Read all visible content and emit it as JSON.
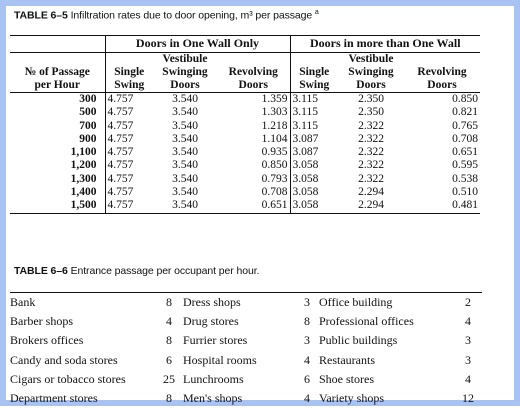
{
  "table65": {
    "number": "TABLE 6–5",
    "title": "Infiltration rates due to door opening, m³ per passage",
    "footnote_mark": "a",
    "group_one_wall": "Doors in One Wall Only",
    "group_more_wall": "Doors in more than One Wall",
    "row_header_line1": "№ of Passage",
    "row_header_line2": "per Hour",
    "columns": [
      {
        "l1": "",
        "l2": "Single",
        "l3": "Swing"
      },
      {
        "l1": "Vestibule",
        "l2": "Swinging",
        "l3": "Doors"
      },
      {
        "l1": "",
        "l2": "Revolving",
        "l3": "Doors"
      },
      {
        "l1": "",
        "l2": "Single",
        "l3": "Swing"
      },
      {
        "l1": "Vestibule",
        "l2": "Swinging",
        "l3": "Doors"
      },
      {
        "l1": "",
        "l2": "Revolving",
        "l3": "Doors"
      }
    ],
    "rows": [
      {
        "passages": "300",
        "v": [
          "4.757",
          "3.540",
          "1.359",
          "3.115",
          "2.350",
          "0.850"
        ]
      },
      {
        "passages": "500",
        "v": [
          "4.757",
          "3.540",
          "1.303",
          "3.115",
          "2.350",
          "0.821"
        ]
      },
      {
        "passages": "700",
        "v": [
          "4.757",
          "3.540",
          "1.218",
          "3.115",
          "2.322",
          "0.765"
        ]
      },
      {
        "passages": "900",
        "v": [
          "4.757",
          "3.540",
          "1.104",
          "3.087",
          "2.322",
          "0.708"
        ]
      },
      {
        "passages": "1,100",
        "v": [
          "4.757",
          "3.540",
          "0.935",
          "3.087",
          "2.322",
          "0.651"
        ]
      },
      {
        "passages": "1,200",
        "v": [
          "4.757",
          "3.540",
          "0.850",
          "3.058",
          "2.322",
          "0.595"
        ]
      },
      {
        "passages": "1,300",
        "v": [
          "4.757",
          "3.540",
          "0.793",
          "3.058",
          "2.322",
          "0.538"
        ]
      },
      {
        "passages": "1,400",
        "v": [
          "4.757",
          "3.540",
          "0.708",
          "3.058",
          "2.294",
          "0.510"
        ]
      },
      {
        "passages": "1,500",
        "v": [
          "4.757",
          "3.540",
          "0.651",
          "3.058",
          "2.294",
          "0.481"
        ]
      }
    ]
  },
  "table66": {
    "number": "TABLE 6–6",
    "title": "Entrance passage per occupant per hour.",
    "rows": [
      [
        {
          "name": "Bank",
          "value": "8"
        },
        {
          "name": "Dress shops",
          "value": "3"
        },
        {
          "name": "Office building",
          "value": "2"
        }
      ],
      [
        {
          "name": "Barber shops",
          "value": "4"
        },
        {
          "name": "Drug stores",
          "value": "8"
        },
        {
          "name": "Professional offices",
          "value": "4"
        }
      ],
      [
        {
          "name": "Brokers offices",
          "value": "8"
        },
        {
          "name": "Furrier stores",
          "value": "3"
        },
        {
          "name": "Public buildings",
          "value": "3"
        }
      ],
      [
        {
          "name": "Candy and soda stores",
          "value": "6"
        },
        {
          "name": "Hospital rooms",
          "value": "4"
        },
        {
          "name": "Restaurants",
          "value": "3"
        }
      ],
      [
        {
          "name": "Cigars or tobacco stores",
          "value": "25"
        },
        {
          "name": "Lunchrooms",
          "value": "6"
        },
        {
          "name": "Shoe stores",
          "value": "4"
        }
      ],
      [
        {
          "name": "Department stores",
          "value": "8"
        },
        {
          "name": "Men's shops",
          "value": "4"
        },
        {
          "name": "Variety shops",
          "value": "12"
        }
      ]
    ]
  }
}
